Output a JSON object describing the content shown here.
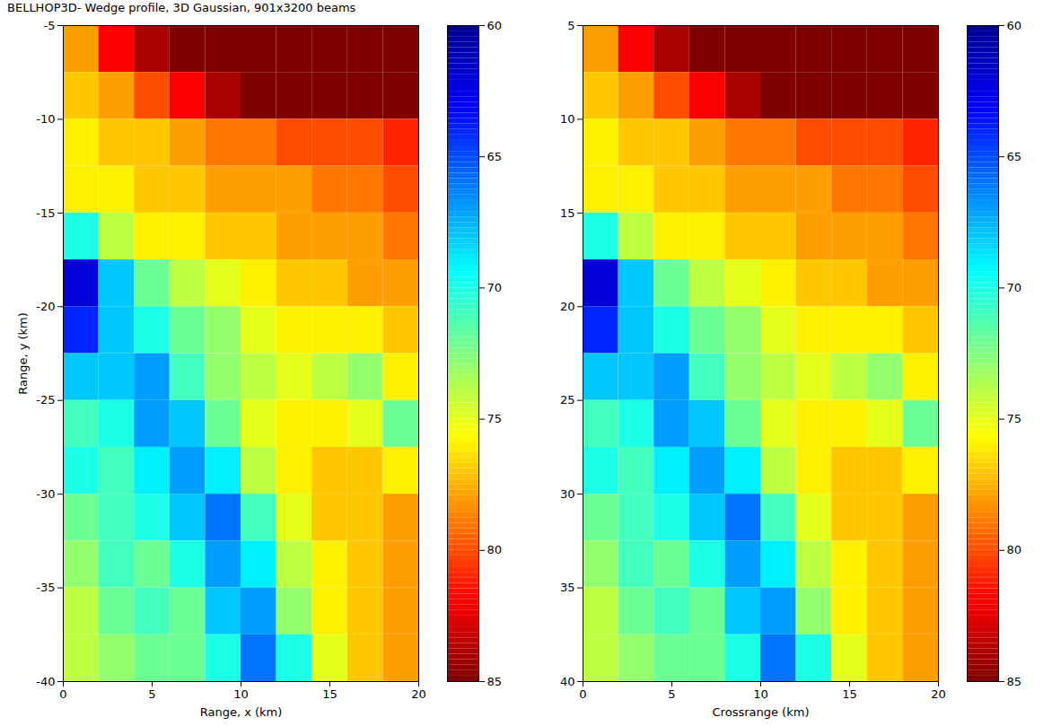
{
  "chart_data": [
    {
      "type": "heatmap",
      "title": "BELLHOP3D- Wedge profile, 3D Gaussian, 901x3200 beams",
      "x_label": "Range, x (km)",
      "y_label": "Range, y (km)",
      "xlim": [
        0,
        20
      ],
      "ylim": [
        -40,
        -5
      ],
      "xticks": [
        0,
        5,
        10,
        15,
        20
      ],
      "yticks": [
        -40,
        -35,
        -30,
        -25,
        -20,
        -15,
        -10,
        -5
      ],
      "color": "jet",
      "x_edges": [
        0,
        2,
        4,
        6,
        8,
        10,
        12,
        14,
        16,
        18,
        20
      ],
      "y_edges": [
        -5,
        -7.5,
        -10,
        -12.5,
        -15,
        -17.5,
        -20,
        -22.5,
        -25,
        -27.5,
        -30,
        -32.5,
        -35,
        -37.5,
        -40
      ],
      "cells": [
        [
          78,
          82,
          84,
          85,
          85,
          85,
          85,
          85,
          85,
          85
        ],
        [
          77,
          78,
          80,
          82,
          84,
          85,
          85,
          85,
          85,
          85
        ],
        [
          76,
          77,
          77,
          78,
          79,
          79,
          80,
          80,
          80,
          81
        ],
        [
          76,
          76,
          77,
          77,
          78,
          78,
          78,
          79,
          79,
          80
        ],
        [
          70,
          74,
          76,
          76,
          77,
          77,
          78,
          78,
          78,
          79
        ],
        [
          62,
          68,
          72,
          74,
          75,
          76,
          77,
          77,
          78,
          78
        ],
        [
          64,
          68,
          70,
          72,
          73,
          75,
          76,
          76,
          76,
          77
        ],
        [
          68,
          68,
          67,
          71,
          73,
          74,
          75,
          74,
          73,
          76
        ],
        [
          71,
          70,
          67,
          68,
          72,
          75,
          76,
          76,
          75,
          72
        ],
        [
          70,
          71,
          69,
          67,
          69,
          74,
          76,
          77,
          77,
          76
        ],
        [
          72,
          71,
          70,
          68,
          66,
          71,
          75,
          77,
          77,
          78
        ],
        [
          73,
          71,
          72,
          70,
          67,
          69,
          74,
          76,
          77,
          78
        ],
        [
          74,
          72,
          71,
          72,
          68,
          67,
          73,
          76,
          77,
          78
        ],
        [
          74,
          73,
          72,
          72,
          70,
          66,
          70,
          75,
          77,
          78
        ]
      ],
      "colorbar": {
        "range": [
          85,
          60
        ],
        "ticks": [
          60,
          65,
          70,
          75,
          80,
          85
        ]
      }
    },
    {
      "type": "heatmap",
      "x_label": "Crossrange (km)",
      "xlim": [
        0,
        20
      ],
      "ylim": [
        40,
        5
      ],
      "xticks": [
        0,
        5,
        10,
        15,
        20
      ],
      "yticks": [
        5,
        10,
        15,
        20,
        25,
        30,
        35,
        40
      ],
      "color": "jet",
      "x_edges": [
        0,
        2,
        4,
        6,
        8,
        10,
        12,
        14,
        16,
        18,
        20
      ],
      "y_edges": [
        5,
        7.5,
        10,
        12.5,
        15,
        17.5,
        20,
        22.5,
        25,
        27.5,
        30,
        32.5,
        35,
        37.5,
        40
      ],
      "cells": [
        [
          78,
          82,
          84,
          85,
          85,
          85,
          85,
          85,
          85,
          85
        ],
        [
          77,
          78,
          80,
          82,
          84,
          85,
          85,
          85,
          85,
          85
        ],
        [
          76,
          77,
          77,
          78,
          79,
          79,
          80,
          80,
          80,
          81
        ],
        [
          76,
          76,
          77,
          77,
          78,
          78,
          78,
          79,
          79,
          80
        ],
        [
          70,
          74,
          76,
          76,
          77,
          77,
          78,
          78,
          78,
          79
        ],
        [
          62,
          68,
          72,
          74,
          75,
          76,
          77,
          77,
          78,
          78
        ],
        [
          64,
          68,
          70,
          72,
          73,
          75,
          76,
          76,
          76,
          77
        ],
        [
          68,
          68,
          67,
          71,
          73,
          74,
          75,
          74,
          73,
          76
        ],
        [
          71,
          70,
          67,
          68,
          72,
          75,
          76,
          76,
          75,
          72
        ],
        [
          70,
          71,
          69,
          67,
          69,
          74,
          76,
          77,
          77,
          76
        ],
        [
          72,
          71,
          70,
          68,
          66,
          71,
          75,
          77,
          77,
          78
        ],
        [
          73,
          71,
          72,
          70,
          67,
          69,
          74,
          76,
          77,
          78
        ],
        [
          74,
          72,
          71,
          72,
          68,
          67,
          73,
          76,
          77,
          78
        ],
        [
          74,
          73,
          72,
          72,
          70,
          66,
          70,
          75,
          77,
          78
        ]
      ],
      "colorbar": {
        "range": [
          85,
          60
        ],
        "ticks": [
          60,
          65,
          70,
          75,
          80,
          85
        ]
      }
    }
  ]
}
